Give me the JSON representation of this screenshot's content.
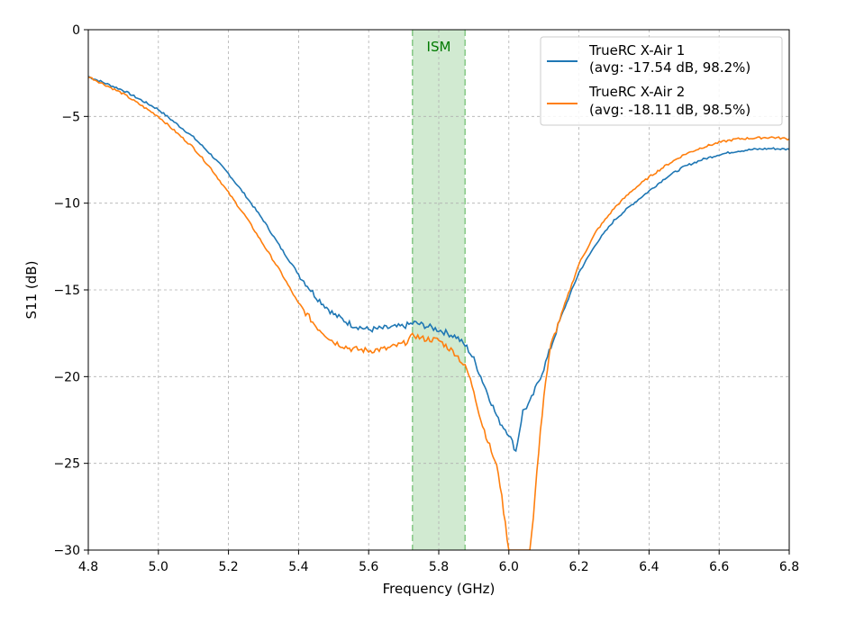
{
  "chart_data": {
    "type": "line",
    "xlabel": "Frequency (GHz)",
    "ylabel": "S11 (dB)",
    "xlim": [
      4.8,
      6.8
    ],
    "ylim": [
      -30,
      0
    ],
    "xticks": [
      4.8,
      5.0,
      5.2,
      5.4,
      5.6,
      5.8,
      6.0,
      6.2,
      6.4,
      6.6,
      6.8
    ],
    "xtick_labels": [
      "4.8",
      "5.0",
      "5.2",
      "5.4",
      "5.6",
      "5.8",
      "6.0",
      "6.2",
      "6.4",
      "6.6",
      "6.8"
    ],
    "yticks": [
      0,
      -5,
      -10,
      -15,
      -20,
      -25,
      -30
    ],
    "ytick_labels": [
      "0",
      "−5",
      "−10",
      "−15",
      "−20",
      "−25",
      "−30"
    ],
    "grid": true,
    "legend_position": "top-right",
    "band": {
      "label": "ISM",
      "x_start": 5.725,
      "x_end": 5.875,
      "color": "#2ca02c"
    },
    "series": [
      {
        "name": "TrueRC X-Air 1",
        "legend_line2": "(avg: -17.54 dB, 98.2%)",
        "color": "#1f77b4",
        "x": [
          4.8,
          4.9,
          5.0,
          5.05,
          5.1,
          5.15,
          5.2,
          5.25,
          5.3,
          5.35,
          5.4,
          5.45,
          5.5,
          5.55,
          5.6,
          5.65,
          5.7,
          5.73,
          5.75,
          5.8,
          5.85,
          5.88,
          5.9,
          5.92,
          5.95,
          5.97,
          6.0,
          6.02,
          6.04,
          6.06,
          6.08,
          6.1,
          6.12,
          6.15,
          6.2,
          6.25,
          6.3,
          6.35,
          6.4,
          6.45,
          6.5,
          6.55,
          6.6,
          6.65,
          6.7,
          6.75,
          6.8
        ],
        "y": [
          -2.7,
          -3.5,
          -4.6,
          -5.4,
          -6.2,
          -7.2,
          -8.3,
          -9.6,
          -11.0,
          -12.6,
          -14.1,
          -15.4,
          -16.4,
          -17.0,
          -17.3,
          -17.2,
          -17.1,
          -16.9,
          -17.0,
          -17.3,
          -17.7,
          -18.3,
          -19.0,
          -20.0,
          -21.5,
          -22.5,
          -23.3,
          -24.3,
          -22.0,
          -21.5,
          -20.5,
          -19.5,
          -18.3,
          -16.5,
          -14.0,
          -12.3,
          -11.0,
          -10.1,
          -9.3,
          -8.5,
          -7.9,
          -7.5,
          -7.2,
          -7.0,
          -6.9,
          -6.85,
          -6.9
        ]
      },
      {
        "name": "TrueRC X-Air 2",
        "legend_line2": "(avg: -18.11 dB, 98.5%)",
        "color": "#ff7f0e",
        "x": [
          4.8,
          4.9,
          5.0,
          5.05,
          5.1,
          5.15,
          5.2,
          5.25,
          5.3,
          5.35,
          5.4,
          5.45,
          5.5,
          5.55,
          5.6,
          5.65,
          5.7,
          5.73,
          5.75,
          5.8,
          5.85,
          5.88,
          5.9,
          5.92,
          5.95,
          5.97,
          5.99,
          6.0,
          6.06,
          6.07,
          6.08,
          6.1,
          6.12,
          6.15,
          6.2,
          6.25,
          6.3,
          6.35,
          6.4,
          6.45,
          6.5,
          6.55,
          6.6,
          6.65,
          6.7,
          6.75,
          6.8
        ],
        "y": [
          -2.7,
          -3.7,
          -5.0,
          -5.9,
          -6.8,
          -8.0,
          -9.4,
          -10.8,
          -12.4,
          -14.0,
          -15.8,
          -17.1,
          -18.0,
          -18.4,
          -18.5,
          -18.4,
          -18.1,
          -17.6,
          -17.8,
          -17.9,
          -18.7,
          -19.6,
          -20.8,
          -22.5,
          -24.3,
          -25.5,
          -28.5,
          -30.0,
          -30.0,
          -28.0,
          -25.5,
          -21.0,
          -18.2,
          -16.4,
          -13.5,
          -11.6,
          -10.3,
          -9.3,
          -8.5,
          -7.8,
          -7.2,
          -6.8,
          -6.5,
          -6.3,
          -6.25,
          -6.2,
          -6.3
        ]
      }
    ]
  }
}
